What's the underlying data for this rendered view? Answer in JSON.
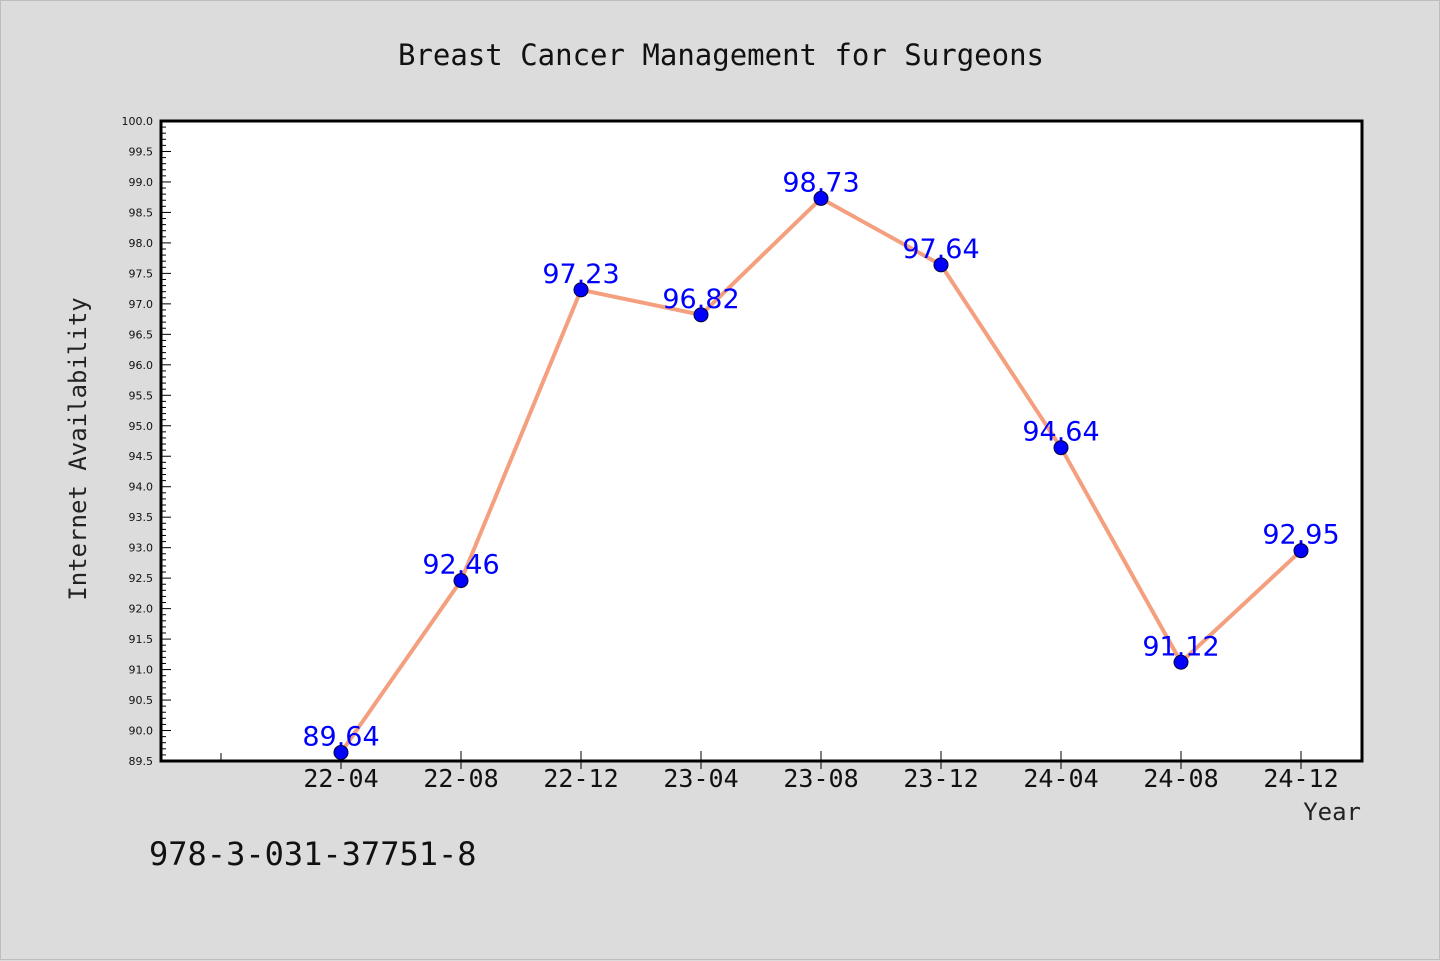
{
  "footer_text": "978-3-031-37751-8",
  "colors": {
    "background": "#dcdcdc",
    "plot_background": "#ffffff",
    "line": "#f4a07e",
    "marker": "#0000ff",
    "data_label": "#0000ff"
  },
  "chart_data": {
    "type": "line",
    "title": "Breast Cancer Management for Surgeons",
    "xlabel": "Year",
    "ylabel": "Internet Availability",
    "categories": [
      "22-04",
      "22-08",
      "22-12",
      "23-04",
      "23-08",
      "23-12",
      "24-04",
      "24-08",
      "24-12"
    ],
    "series": [
      {
        "values": [
          89.64,
          92.46,
          97.23,
          96.82,
          98.73,
          97.64,
          94.64,
          91.12,
          92.95
        ],
        "data_labels": [
          "89.64",
          "92.46",
          "97.23",
          "96.82",
          "98.73",
          "97.64",
          "94.64",
          "91.12",
          "92.95"
        ]
      }
    ],
    "ylim": [
      89.5,
      100.0
    ],
    "yticks": [
      "89.5",
      "90.0",
      "90.5",
      "91.0",
      "91.5",
      "92.0",
      "92.5",
      "93.0",
      "93.5",
      "94.0",
      "94.5",
      "95.0",
      "95.5",
      "96.0",
      "96.5",
      "97.0",
      "97.5",
      "98.0",
      "98.5",
      "99.0",
      "99.5",
      "100.0"
    ],
    "grid": false,
    "legend": "none"
  }
}
